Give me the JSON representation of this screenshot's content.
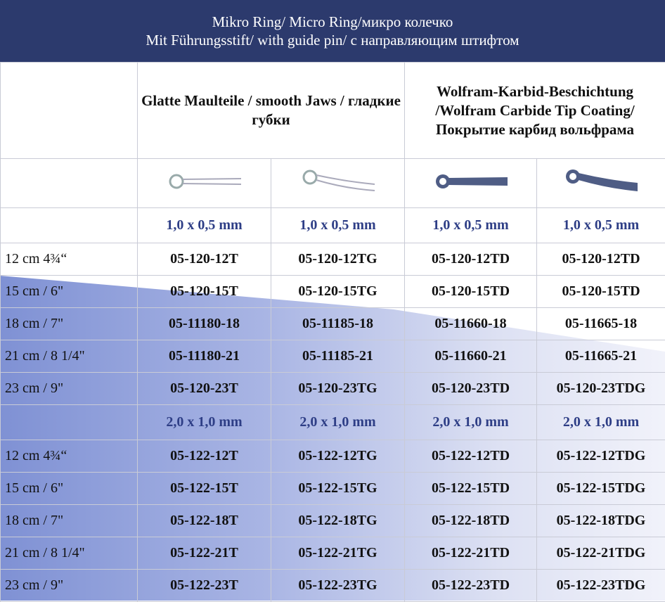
{
  "header": {
    "lines": [
      "Mikro Ring/ Micro Ring/микро колечко",
      "Mit Führungsstift/  with guide pin/ с направляющим штифтом"
    ]
  },
  "table": {
    "group_headers": [
      "Glatte Maulteile / smooth Jaws / гладкие губки",
      "Wolfram-Karbid-Beschichtung /Wolfram Carbide Tip Coating/Покрытие карбид вольфрама"
    ],
    "sections": [
      {
        "sizes": [
          "1,0 x 0,5 mm",
          "1,0 x 0,5 mm",
          "1,0 x 0,5 mm",
          "1,0 x 0,5 mm"
        ],
        "rows": [
          [
            "12 cm 4¾“",
            "05-120-12T",
            "05-120-12TG",
            "05-120-12TD",
            "05-120-12TD"
          ],
          [
            "15 cm / 6\"",
            "05-120-15T",
            "05-120-15TG",
            "05-120-15TD",
            "05-120-15TD"
          ],
          [
            "18 cm / 7\"",
            "05-11180-18",
            "05-11185-18",
            "05-11660-18",
            "05-11665-18"
          ],
          [
            "21 cm / 8 1/4\"",
            "05-11180-21",
            "05-11185-21",
            "05-11660-21",
            "05-11665-21"
          ],
          [
            "23 cm / 9\"",
            "05-120-23T",
            "05-120-23TG",
            "05-120-23TD",
            "05-120-23TDG"
          ]
        ]
      },
      {
        "sizes": [
          "2,0 x 1,0 mm",
          "2,0 x 1,0 mm",
          "2,0 x 1,0 mm",
          "2,0 x 1,0 mm"
        ],
        "rows": [
          [
            "12 cm 4¾“",
            "05-122-12T",
            "05-122-12TG",
            "05-122-12TD",
            "05-122-12TDG"
          ],
          [
            "15 cm / 6\"",
            "05-122-15T",
            "05-122-15TG",
            "05-122-15TD",
            "05-122-15TDG"
          ],
          [
            "18 cm / 7\"",
            "05-122-18T",
            "05-122-18TG",
            "05-122-18TD",
            "05-122-18TDG"
          ],
          [
            "21 cm / 8 1/4\"",
            "05-122-21T",
            "05-122-21TG",
            "05-122-21TD",
            "05-122-21TDG"
          ],
          [
            "23 cm / 9\"",
            "05-122-23T",
            "05-122-23TG",
            "05-122-23TD",
            "05-122-23TDG"
          ]
        ]
      }
    ]
  }
}
